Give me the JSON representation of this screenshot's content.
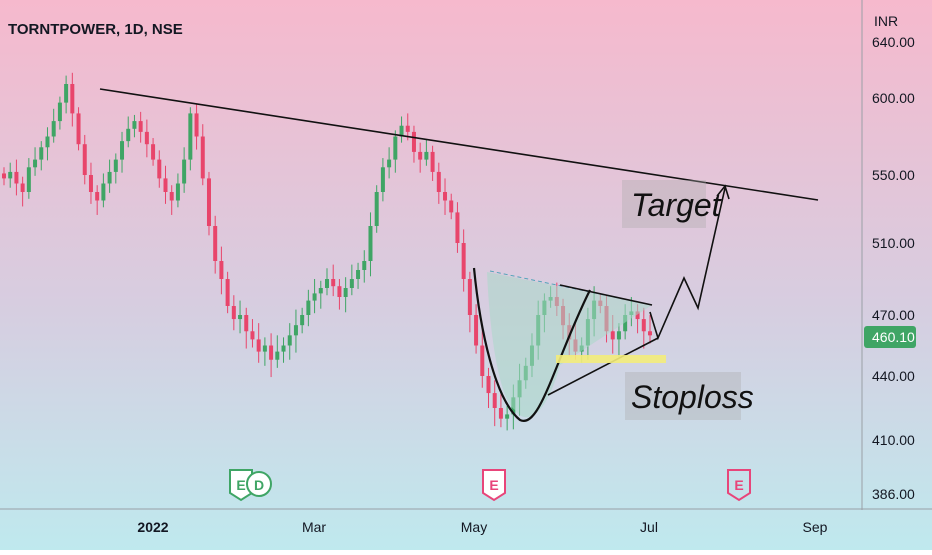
{
  "header": {
    "symbol_title": "TORNTPOWER, 1D, NSE"
  },
  "price_axis": {
    "currency": "INR",
    "ticks": [
      "640.00",
      "600.00",
      "550.00",
      "510.00",
      "470.00",
      "440.00",
      "410.00",
      "386.00"
    ],
    "current_price": "460.10"
  },
  "time_axis": {
    "ticks": [
      "2022",
      "Mar",
      "May",
      "Jul",
      "Sep"
    ]
  },
  "annotations": {
    "target_label": "Target",
    "stoploss_label": "Stoploss"
  },
  "event_markers": [
    "E",
    "D",
    "E",
    "E"
  ],
  "colors": {
    "bg_top": "#f6b9cd",
    "bg_bottom": "#bfe9ee",
    "up_candle": "#3fa565",
    "down_candle": "#e8456b",
    "trendline": "#111111",
    "stoploss_band": "#f3ec7a",
    "cup_fill": "#a9d8c8",
    "price_badge": "#3fa565"
  },
  "chart_data": {
    "type": "candlestick",
    "title": "TORNTPOWER, 1D, NSE",
    "ylabel": "INR",
    "yticks": [
      640,
      600,
      550,
      510,
      470,
      440,
      410,
      386
    ],
    "xticks": [
      "2022",
      "Mar",
      "May",
      "Jul",
      "Sep"
    ],
    "current_price": 460.1,
    "series_approx_daily_closes": [
      548,
      552,
      545,
      540,
      555,
      560,
      568,
      575,
      585,
      597,
      610,
      590,
      570,
      550,
      540,
      535,
      545,
      552,
      560,
      572,
      580,
      585,
      578,
      570,
      560,
      548,
      540,
      535,
      545,
      560,
      590,
      575,
      548,
      520,
      500,
      490,
      475,
      468,
      470,
      462,
      458,
      452,
      455,
      448,
      452,
      455,
      460,
      465,
      470,
      478,
      482,
      485,
      490,
      486,
      480,
      485,
      490,
      495,
      500,
      520,
      540,
      555,
      560,
      575,
      582,
      578,
      565,
      560,
      565,
      552,
      540,
      535,
      528,
      510,
      490,
      470,
      455,
      440,
      432,
      425,
      420,
      422,
      430,
      438,
      445,
      455,
      470,
      478,
      480,
      475,
      465,
      458,
      452,
      455,
      468,
      478,
      475,
      462,
      458,
      462,
      470,
      472,
      468,
      462,
      460
    ],
    "trendline_resistance": [
      {
        "x": "2021-12-23",
        "y": 612
      },
      {
        "x": "2022-08-20",
        "y": 540
      }
    ],
    "cup_low": 418,
    "target": 545,
    "stoploss": 450,
    "legend": "none",
    "grid": false
  }
}
